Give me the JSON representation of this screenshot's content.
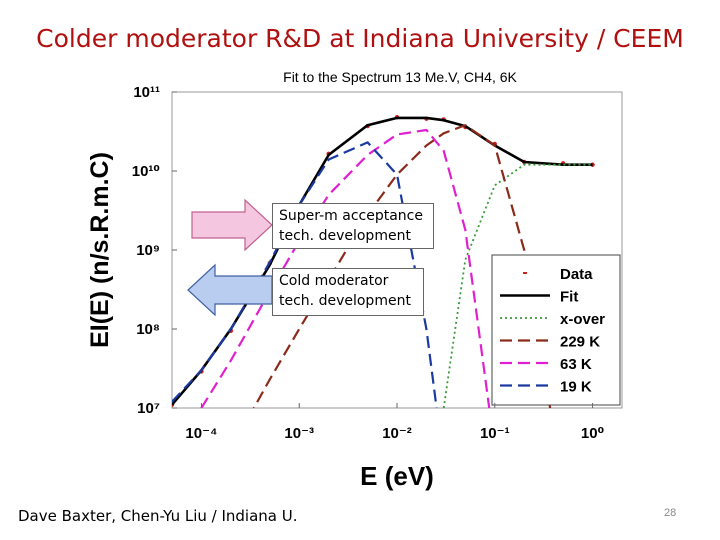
{
  "slide": {
    "title": "Colder moderator R&D at Indiana University / CEEM",
    "footer": "Dave Baxter, Chen-Yu Liu / Indiana U.",
    "page": "28"
  },
  "chart_data": {
    "type": "line",
    "title": "Fit to the Spectrum 13 Me.V, CH4, 6K",
    "x_label": "E (eV)",
    "y_label": "EI(E) (n/s.R.m.C)",
    "xscale": "log",
    "yscale": "log",
    "xlim": [
      5e-05,
      2
    ],
    "ylim": [
      10000000,
      100000000000
    ],
    "xticks": [
      {
        "value": 0.0001,
        "label": "10⁻⁴"
      },
      {
        "value": 0.001,
        "label": "10⁻³"
      },
      {
        "value": 0.01,
        "label": "10⁻²"
      },
      {
        "value": 0.1,
        "label": "10⁻¹"
      },
      {
        "value": 1,
        "label": "10⁰"
      }
    ],
    "yticks": [
      {
        "value": 10000000,
        "label": "10⁷"
      },
      {
        "value": 100000000,
        "label": "10⁸"
      },
      {
        "value": 1000000000,
        "label": "10⁹"
      },
      {
        "value": 10000000000,
        "label": "10¹⁰"
      },
      {
        "value": 100000000000,
        "label": "10¹¹"
      }
    ],
    "legend": "lower right",
    "x": [
      5e-05,
      0.0001,
      0.0002,
      0.0005,
      0.001,
      0.002,
      0.005,
      0.01,
      0.02,
      0.03,
      0.05,
      0.1,
      0.2,
      0.5,
      1
    ],
    "series": [
      {
        "name": "Data",
        "color": "#d02020",
        "style": "markers",
        "values": [
          11000000,
          29000000,
          95000000,
          680000000,
          3600000000,
          16500000000,
          37000000000,
          48000000000,
          46000000000,
          45000000000,
          36000000000,
          22000000000,
          13000000000,
          12500000000,
          12000000000
        ]
      },
      {
        "name": "Fit",
        "color": "#000000",
        "style": "solid",
        "values": [
          11000000,
          30000000,
          100000000,
          650000000,
          3700000000,
          16000000000,
          38000000000,
          47000000000,
          47000000000,
          44000000000,
          37000000000,
          21000000000,
          13000000000,
          12000000000,
          12000000000
        ]
      },
      {
        "name": "x-over",
        "color": "#3a9a3a",
        "style": "dotted",
        "values": [
          null,
          null,
          null,
          null,
          null,
          null,
          null,
          null,
          null,
          10000000,
          750000000,
          6600000000,
          12000000000,
          12000000000,
          12000000000
        ]
      },
      {
        "name": "229 K",
        "color": "#8b2a1a",
        "style": "dashed",
        "values": [
          null,
          null,
          3000000,
          23000000,
          100000000,
          420000000,
          2800000000,
          9000000000,
          21000000000,
          30000000000,
          38000000000,
          21000000000,
          1000000000,
          1000000,
          null
        ]
      },
      {
        "name": "63 K",
        "color": "#e020d0",
        "style": "dashed",
        "values": [
          null,
          10000000,
          40000000,
          300000000,
          1300000000,
          5000000000,
          16000000000,
          29000000000,
          33000000000,
          18000000000,
          1800000000,
          3000000,
          null,
          null,
          null
        ]
      },
      {
        "name": "19 K",
        "color": "#1a3aa0",
        "style": "dashed",
        "values": [
          12000000,
          30000000,
          100000000,
          700000000,
          3700000000,
          14000000000,
          23000000000,
          9000000000,
          100000000,
          2000000,
          null,
          null,
          null,
          null,
          null
        ]
      }
    ],
    "annotations": [
      {
        "lines": [
          "Super-m acceptance",
          "tech. development"
        ],
        "color": "#f5c6e0"
      },
      {
        "lines": [
          "Cold moderator",
          "tech. development"
        ],
        "color": "#b8cdf0"
      }
    ]
  }
}
